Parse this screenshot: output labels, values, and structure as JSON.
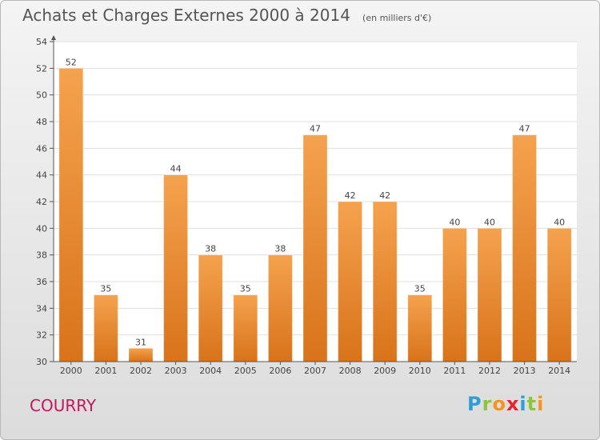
{
  "title": "Achats et Charges Externes 2000 à 2014",
  "subtitle": "(en milliers d'€)",
  "commune": "COURRY",
  "logo": {
    "text": "Proxiti",
    "letters": [
      {
        "ch": "P",
        "color": "#2a9fd8"
      },
      {
        "ch": "r",
        "color": "#8cc63f"
      },
      {
        "ch": "o",
        "color": "#f7941d"
      },
      {
        "ch": "x",
        "color": "#e9232d"
      },
      {
        "ch": "i",
        "color": "#2a9fd8"
      },
      {
        "ch": "t",
        "color": "#8cc63f"
      },
      {
        "ch": "i",
        "color": "#f7941d"
      }
    ]
  },
  "colors": {
    "bar_top": "#f5a24e",
    "bar_bottom": "#d8731a",
    "axis": "#555555",
    "grid": "#e0e0e0",
    "text": "#444444"
  },
  "chart_data": {
    "type": "bar",
    "categories": [
      "2000",
      "2001",
      "2002",
      "2003",
      "2004",
      "2005",
      "2006",
      "2007",
      "2008",
      "2009",
      "2010",
      "2011",
      "2012",
      "2013",
      "2014"
    ],
    "values": [
      52,
      35,
      31,
      44,
      38,
      35,
      38,
      47,
      42,
      42,
      35,
      40,
      40,
      47,
      40
    ],
    "ylim": [
      30,
      54
    ],
    "yticks": [
      30,
      32,
      34,
      36,
      38,
      40,
      42,
      44,
      46,
      48,
      50,
      52,
      54
    ],
    "grid": true,
    "data_labels": true
  }
}
